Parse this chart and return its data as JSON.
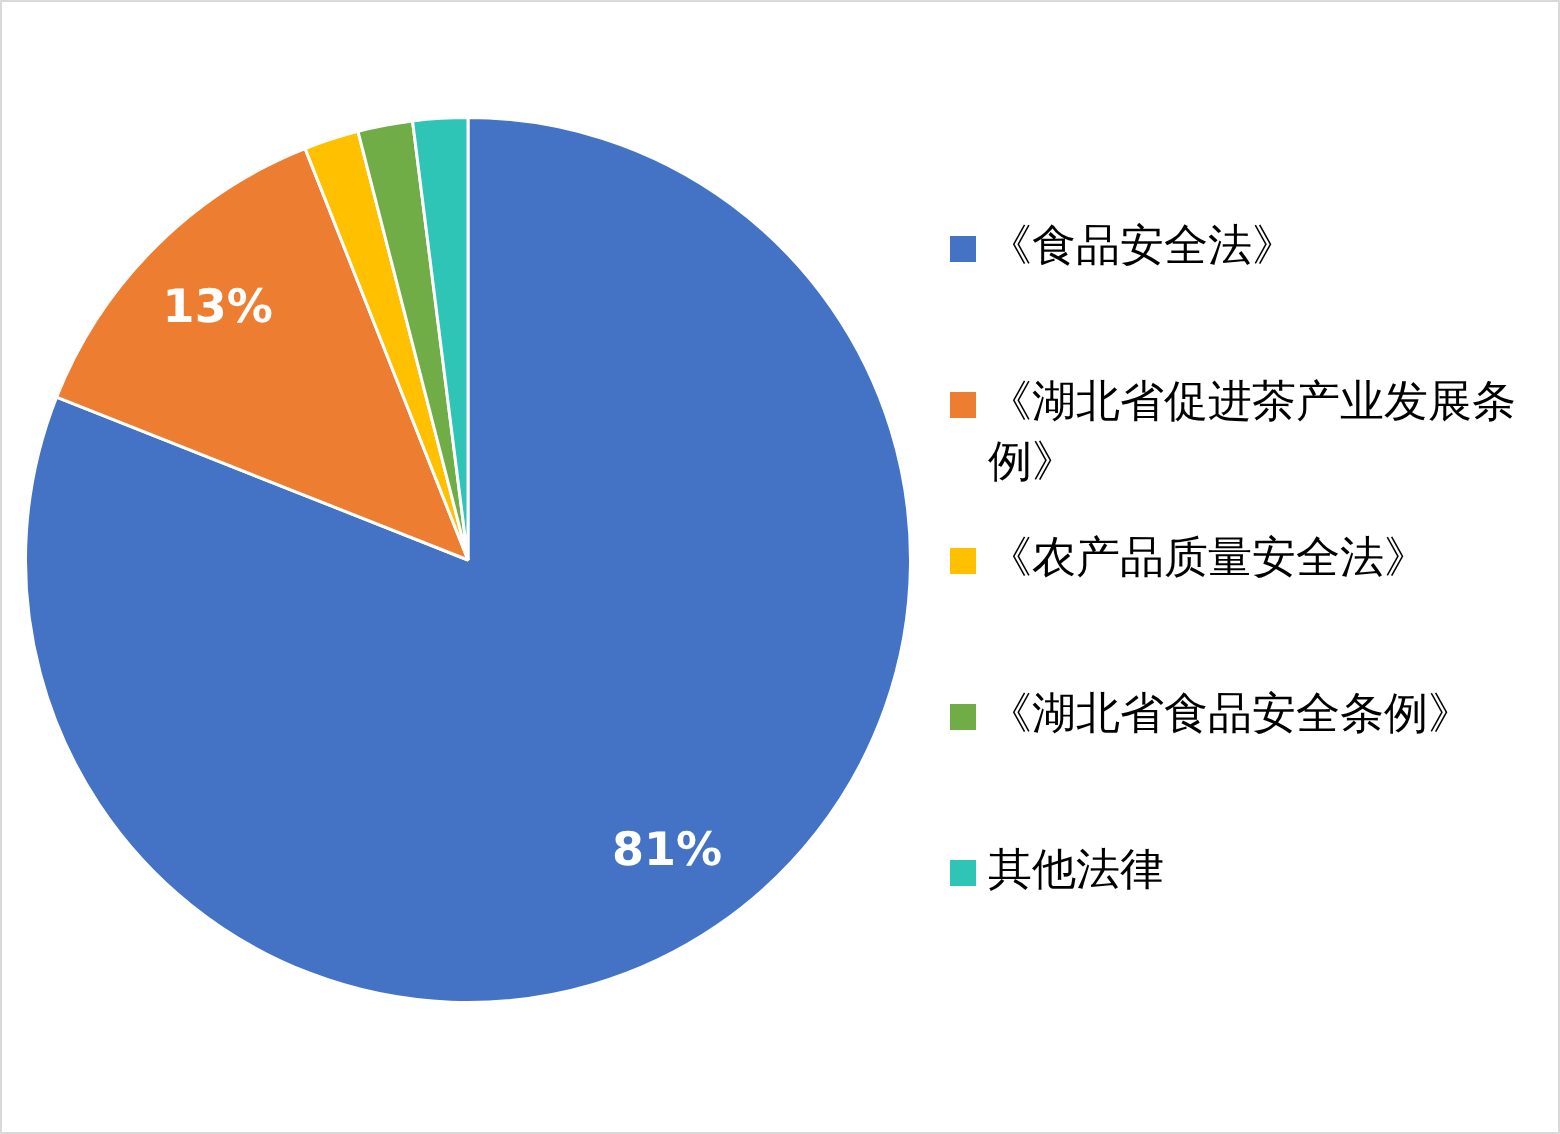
{
  "chart_data": {
    "type": "pie",
    "categories": [
      "《食品安全法》",
      "《湖北省促进茶产业发展条例》",
      "《农产品质量安全法》",
      "《湖北省食品安全条例》",
      "其他法律"
    ],
    "values": [
      81,
      13,
      2,
      2,
      2
    ],
    "colors": [
      "#4472c4",
      "#ed7d31",
      "#ffc000",
      "#70ad47",
      "#2ec4b6"
    ],
    "value_labels": [
      "81%",
      "13%",
      null,
      null,
      null
    ],
    "legend": "right"
  }
}
